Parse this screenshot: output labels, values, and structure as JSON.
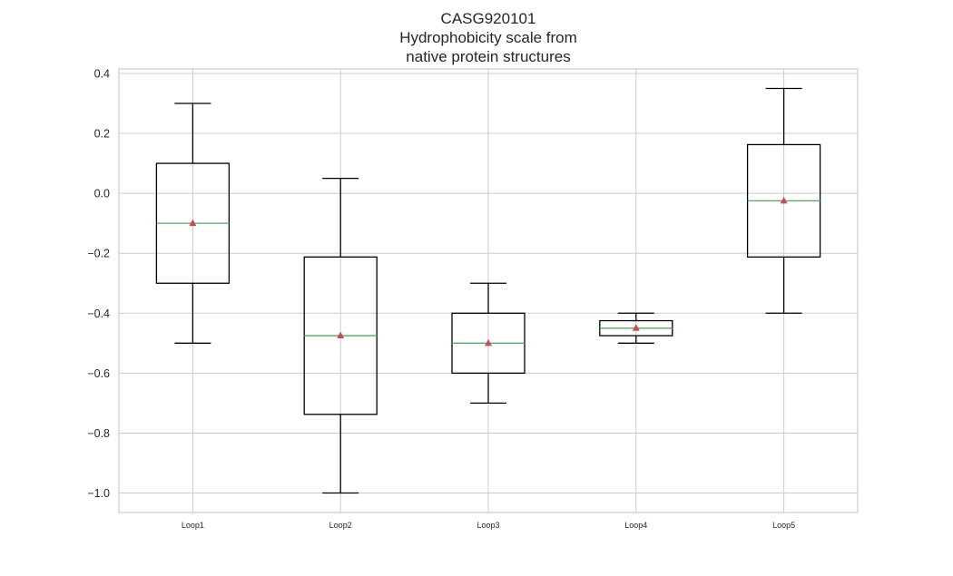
{
  "chart_data": {
    "type": "box",
    "title_lines": [
      "CASG920101",
      "Hydrophobicity scale from",
      "native protein structures"
    ],
    "xlabel": "",
    "ylabel": "",
    "categories": [
      "Loop1",
      "Loop2",
      "Loop3",
      "Loop4",
      "Loop5"
    ],
    "boxes": [
      {
        "whisker_low": -0.5,
        "q1": -0.3,
        "median": -0.1,
        "q3": 0.1,
        "whisker_high": 0.3,
        "mean": -0.1
      },
      {
        "whisker_low": -1.0,
        "q1": -0.7375,
        "median": -0.475,
        "q3": -0.2125,
        "whisker_high": 0.05,
        "mean": -0.475
      },
      {
        "whisker_low": -0.7,
        "q1": -0.6,
        "median": -0.5,
        "q3": -0.4,
        "whisker_high": -0.3,
        "mean": -0.5
      },
      {
        "whisker_low": -0.5,
        "q1": -0.475,
        "median": -0.45,
        "q3": -0.425,
        "whisker_high": -0.4,
        "mean": -0.45
      },
      {
        "whisker_low": -0.4,
        "q1": -0.2125,
        "median": -0.025,
        "q3": 0.1625,
        "whisker_high": 0.35,
        "mean": -0.025
      }
    ],
    "yticks": [
      "0.4",
      "0.2",
      "0.0",
      "−0.2",
      "−0.4",
      "−0.6",
      "−0.8",
      "−1.0"
    ],
    "ytick_values": [
      0.4,
      0.2,
      0.0,
      -0.2,
      -0.4,
      -0.6,
      -0.8,
      -1.0
    ],
    "ylim": [
      -1.065,
      0.415
    ],
    "grid": true,
    "colors": {
      "box": "#000000",
      "median": "#55a868",
      "mean": "#c44e52",
      "grid": "#cccccc",
      "axes": "#cccccc"
    }
  }
}
